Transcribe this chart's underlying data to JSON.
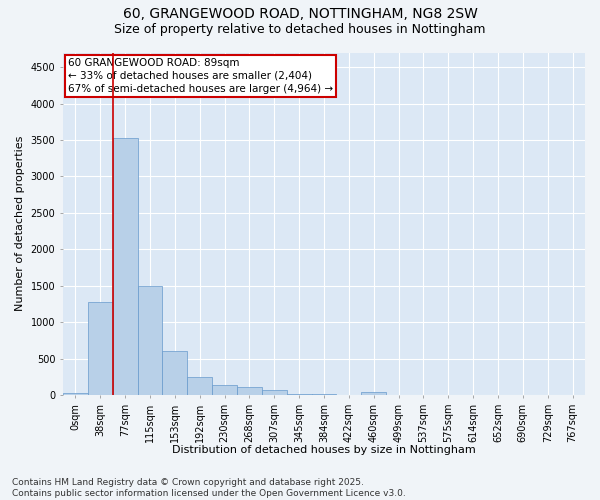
{
  "title_line1": "60, GRANGEWOOD ROAD, NOTTINGHAM, NG8 2SW",
  "title_line2": "Size of property relative to detached houses in Nottingham",
  "xlabel": "Distribution of detached houses by size in Nottingham",
  "ylabel": "Number of detached properties",
  "bin_labels": [
    "0sqm",
    "38sqm",
    "77sqm",
    "115sqm",
    "153sqm",
    "192sqm",
    "230sqm",
    "268sqm",
    "307sqm",
    "345sqm",
    "384sqm",
    "422sqm",
    "460sqm",
    "499sqm",
    "537sqm",
    "575sqm",
    "614sqm",
    "652sqm",
    "690sqm",
    "729sqm",
    "767sqm"
  ],
  "bar_heights": [
    30,
    1275,
    3530,
    1490,
    600,
    250,
    135,
    110,
    70,
    10,
    10,
    0,
    40,
    0,
    0,
    0,
    0,
    0,
    0,
    0,
    0
  ],
  "bar_color": "#b8d0e8",
  "bar_edge_color": "#6699cc",
  "vline_color": "#cc0000",
  "annotation_text": "60 GRANGEWOOD ROAD: 89sqm\n← 33% of detached houses are smaller (2,404)\n67% of semi-detached houses are larger (4,964) →",
  "annotation_box_color": "#cc0000",
  "ylim": [
    0,
    4700
  ],
  "yticks": [
    0,
    500,
    1000,
    1500,
    2000,
    2500,
    3000,
    3500,
    4000,
    4500
  ],
  "fig_bg_color": "#f0f4f8",
  "plot_bg_color": "#dce8f5",
  "footnote": "Contains HM Land Registry data © Crown copyright and database right 2025.\nContains public sector information licensed under the Open Government Licence v3.0.",
  "title_fontsize": 10,
  "subtitle_fontsize": 9,
  "label_fontsize": 8,
  "tick_fontsize": 7,
  "annot_fontsize": 7.5,
  "footnote_fontsize": 6.5
}
